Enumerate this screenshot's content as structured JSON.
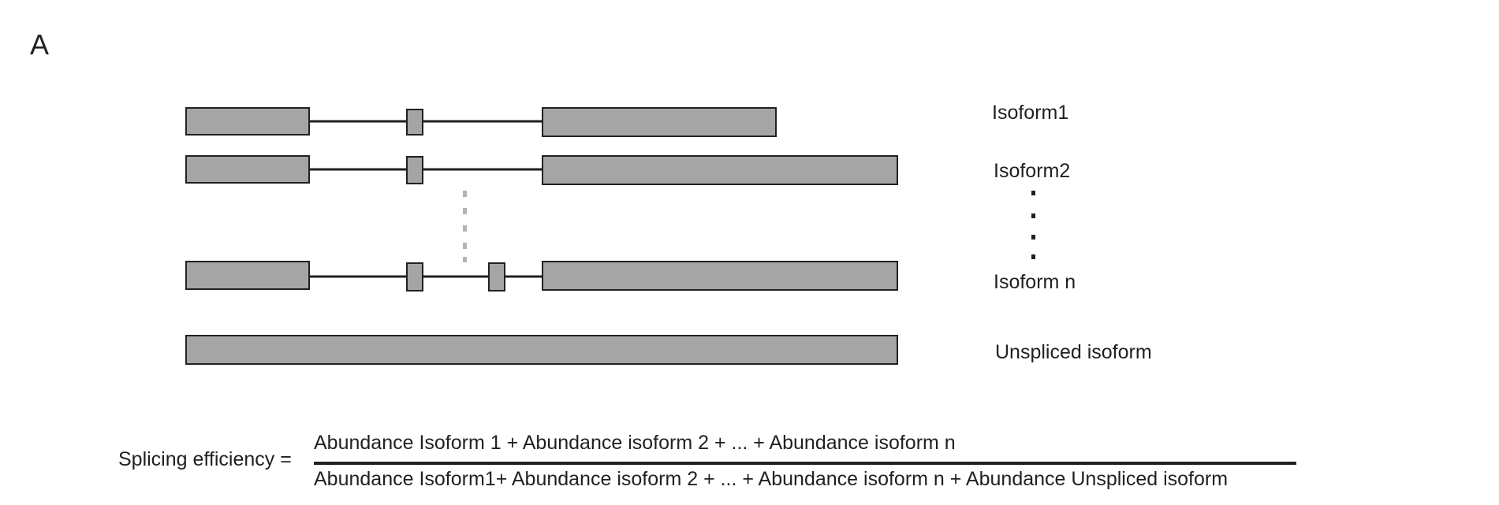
{
  "panel": {
    "letter": "A"
  },
  "isoforms": [
    {
      "label": "Isoform1"
    },
    {
      "label": "Isoform2"
    },
    {
      "label": "Isoform n"
    },
    {
      "label": "Unspliced isoform"
    }
  ],
  "formula": {
    "lhs": "Splicing efficiency =",
    "numerator": "Abundance Isoform 1 + Abundance isoform 2 + ... + Abundance isoform n",
    "denominator": "Abundance Isoform1+ Abundance isoform 2 + ... + Abundance isoform n + Abundance Unspliced isoform"
  },
  "colors": {
    "exon_fill": "#a6a5a6",
    "outline": "#231f20",
    "ellipsis_gray": "#b3b3b3"
  }
}
